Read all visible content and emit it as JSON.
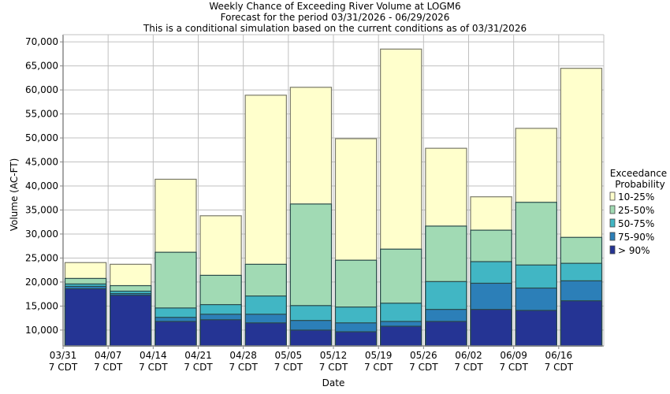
{
  "chart_data": {
    "type": "bar",
    "stacked": true,
    "title": "Weekly Chance of Exceeding River Volume at LOGM6",
    "subtitle": "Forecast for the period 03/31/2026 - 06/29/2026",
    "subtitle2": "This is a conditional simulation based on the current conditions as of 03/31/2026",
    "xlabel": "Date",
    "ylabel": "Volume (AC-FT)",
    "ylim": [
      6700,
      71500
    ],
    "yticks": [
      10000,
      15000,
      20000,
      25000,
      30000,
      35000,
      40000,
      45000,
      50000,
      55000,
      60000,
      65000,
      70000
    ],
    "ytick_labels": [
      "10,000",
      "15,000",
      "20,000",
      "25,000",
      "30,000",
      "35,000",
      "40,000",
      "45,000",
      "50,000",
      "55,000",
      "60,000",
      "65,000",
      "70,000"
    ],
    "categories": [
      "03/31",
      "04/07",
      "04/14",
      "04/21",
      "04/28",
      "05/05",
      "05/12",
      "05/19",
      "05/26",
      "06/02",
      "06/09",
      "06/16"
    ],
    "xtick_labels": [
      {
        "line1": "03/31",
        "line2": "7 CDT"
      },
      {
        "line1": "04/07",
        "line2": "7 CDT"
      },
      {
        "line1": "04/14",
        "line2": "7 CDT"
      },
      {
        "line1": "04/21",
        "line2": "7 CDT"
      },
      {
        "line1": "04/28",
        "line2": "7 CDT"
      },
      {
        "line1": "05/05",
        "line2": "7 CDT"
      },
      {
        "line1": "05/12",
        "line2": "7 CDT"
      },
      {
        "line1": "05/19",
        "line2": "7 CDT"
      },
      {
        "line1": "05/26",
        "line2": "7 CDT"
      },
      {
        "line1": "06/02",
        "line2": "7 CDT"
      },
      {
        "line1": "06/09",
        "line2": "7 CDT"
      },
      {
        "line1": "06/16",
        "line2": "7 CDT"
      }
    ],
    "grid": true,
    "legend": {
      "title_line1": "Exceedance",
      "title_line2": "Probability",
      "placement": "right"
    },
    "series": [
      {
        "name": "10-25%",
        "color": "#ffffcc",
        "values": [
          24050,
          23700,
          41400,
          33800,
          58900,
          60550,
          49850,
          68500,
          47850,
          37750,
          52000,
          64500
        ]
      },
      {
        "name": "25-50%",
        "color": "#a1dab4",
        "values": [
          20750,
          19250,
          26200,
          21400,
          23700,
          36250,
          24550,
          26850,
          31650,
          30800,
          36600,
          29300
        ]
      },
      {
        "name": "50-75%",
        "color": "#41b6c4",
        "values": [
          19600,
          18100,
          14600,
          15300,
          17100,
          15100,
          14800,
          15600,
          20100,
          24250,
          23550,
          23900
        ]
      },
      {
        "name": "75-90%",
        "color": "#2c7fb8",
        "values": [
          19100,
          17600,
          12650,
          13300,
          13300,
          12000,
          11500,
          11800,
          14300,
          19750,
          18750,
          20250
        ]
      },
      {
        "name": "> 90%",
        "color": "#253494",
        "values": [
          18600,
          17250,
          11800,
          12150,
          11500,
          10000,
          9650,
          10800,
          11800,
          14300,
          14100,
          16100
        ]
      }
    ],
    "value_note": "Each series value is the volume level exceeded with that probability; layers overlap from the bottom of the axis."
  }
}
